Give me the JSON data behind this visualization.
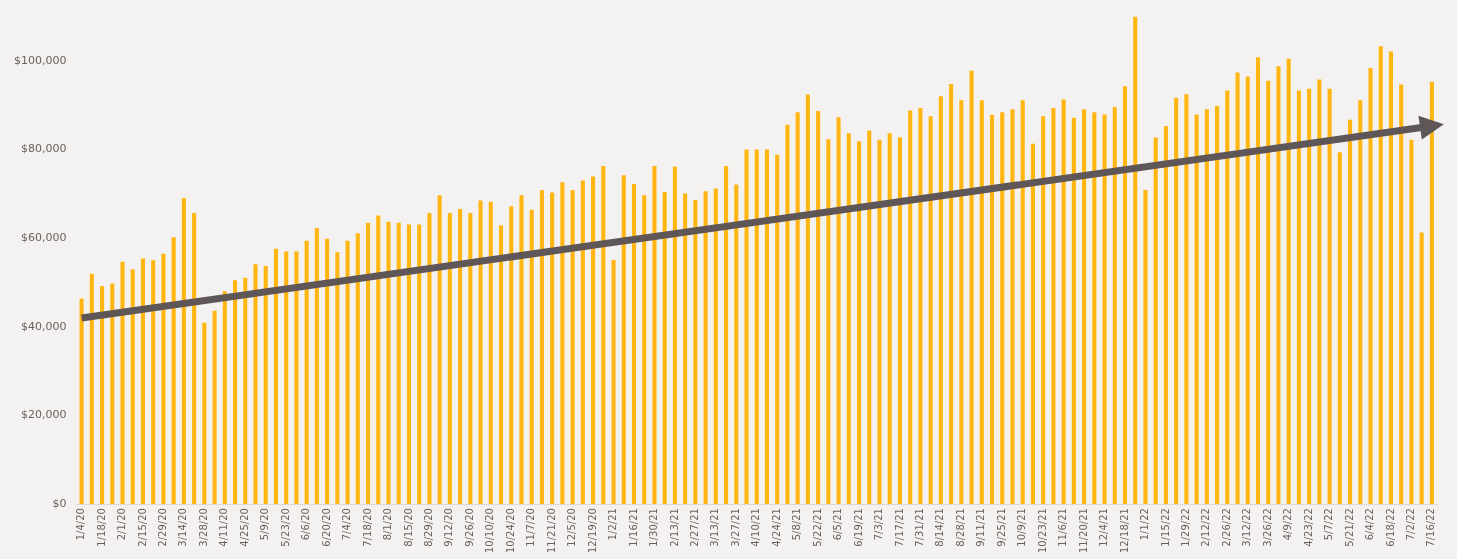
{
  "chart_data": {
    "type": "bar",
    "categories": [
      "1/4/20",
      null,
      "1/18/20",
      null,
      "2/1/20",
      null,
      "2/15/20",
      null,
      "2/29/20",
      null,
      "3/14/20",
      null,
      "3/28/20",
      null,
      "4/11/20",
      null,
      "4/25/20",
      null,
      "5/9/20",
      null,
      "5/23/20",
      null,
      "6/6/20",
      null,
      "6/20/20",
      null,
      "7/4/20",
      null,
      "7/18/20",
      null,
      "8/1/20",
      null,
      "8/15/20",
      null,
      "8/29/20",
      null,
      "9/12/20",
      null,
      "9/26/20",
      null,
      "10/10/20",
      null,
      "10/24/20",
      null,
      "11/7/20",
      null,
      "11/21/20",
      null,
      "12/5/20",
      null,
      "12/19/20",
      null,
      "1/2/21",
      null,
      "1/16/21",
      null,
      "1/30/21",
      null,
      "2/13/21",
      null,
      "2/27/21",
      null,
      "3/13/21",
      null,
      "3/27/21",
      null,
      "4/10/21",
      null,
      "4/24/21",
      null,
      "5/8/21",
      null,
      "5/22/21",
      null,
      "6/5/21",
      null,
      "6/19/21",
      null,
      "7/3/21",
      null,
      "7/17/21",
      null,
      "7/31/21",
      null,
      "8/14/21",
      null,
      "8/28/21",
      null,
      "9/11/21",
      null,
      "9/25/21",
      null,
      "10/9/21",
      null,
      "10/23/21",
      null,
      "11/6/21",
      null,
      "11/20/21",
      null,
      "12/4/21",
      null,
      "12/18/21",
      null,
      "1/1/22",
      null,
      "1/15/22",
      null,
      "1/29/22",
      null,
      "2/12/22",
      null,
      "2/26/22",
      null,
      "3/12/22",
      null,
      "3/26/22",
      null,
      "4/9/22",
      null,
      "4/23/22",
      null,
      "5/7/22",
      null,
      "5/21/22",
      null,
      "6/4/22",
      null,
      "6/18/22",
      null,
      "7/2/22",
      null,
      "7/16/22"
    ],
    "series": [
      {
        "color": "#ffb612",
        "values": [
          46400,
          52000,
          49200,
          49800,
          54700,
          53000,
          55400,
          55000,
          56500,
          60200,
          69000,
          65700,
          40900,
          43600,
          48000,
          50500,
          51100,
          54100,
          53700,
          57600,
          57000,
          57000,
          59400,
          62300,
          59900,
          56800,
          59400,
          61100,
          63500,
          65100,
          63700,
          63500,
          63100,
          63100,
          65700,
          69700,
          65700,
          66600,
          65700,
          68500,
          68200,
          62900,
          67200,
          69700,
          66400,
          70900,
          70300,
          72600,
          70900,
          73000,
          73900,
          76300,
          55100,
          74200,
          72200,
          69700,
          76300,
          70400,
          76100,
          70100,
          68600,
          70600,
          71200,
          76300,
          72100,
          80000,
          80000,
          80000,
          78800,
          85600,
          88400,
          92400,
          88700,
          82300,
          87300,
          83700,
          81900,
          84300,
          82200,
          83700,
          82800,
          88800,
          89400,
          87500,
          92000,
          94800,
          91100,
          97800,
          91100,
          87800,
          88400,
          89100,
          91100,
          81300,
          87500,
          89400,
          91300,
          87200,
          89100,
          88400,
          87900,
          89600,
          94300,
          110000,
          70900,
          82700,
          85300,
          91700,
          92500,
          87900,
          89100,
          89800,
          93300,
          97400,
          96500,
          100800,
          95500,
          98800,
          100500,
          93300,
          93700,
          95800,
          93700,
          79400,
          86700,
          91100,
          98400,
          103300,
          102100,
          94700,
          82200,
          61300,
          95300
        ]
      },
      {
        "type": "line",
        "color": "#5f5757",
        "x": [
          "1/4/20",
          "7/16/22"
        ],
        "values": [
          42000,
          85300
        ]
      }
    ],
    "ylim": [
      0,
      110000
    ],
    "yticks": [
      {
        "value": 0,
        "label": "$0"
      },
      {
        "value": 20000,
        "label": "$20,000"
      },
      {
        "value": 40000,
        "label": "$40,000"
      },
      {
        "value": 60000,
        "label": "$60,000"
      },
      {
        "value": 80000,
        "label": "$80,000"
      },
      {
        "value": 100000,
        "label": "$100,000"
      }
    ],
    "grid": false,
    "legend": false
  }
}
